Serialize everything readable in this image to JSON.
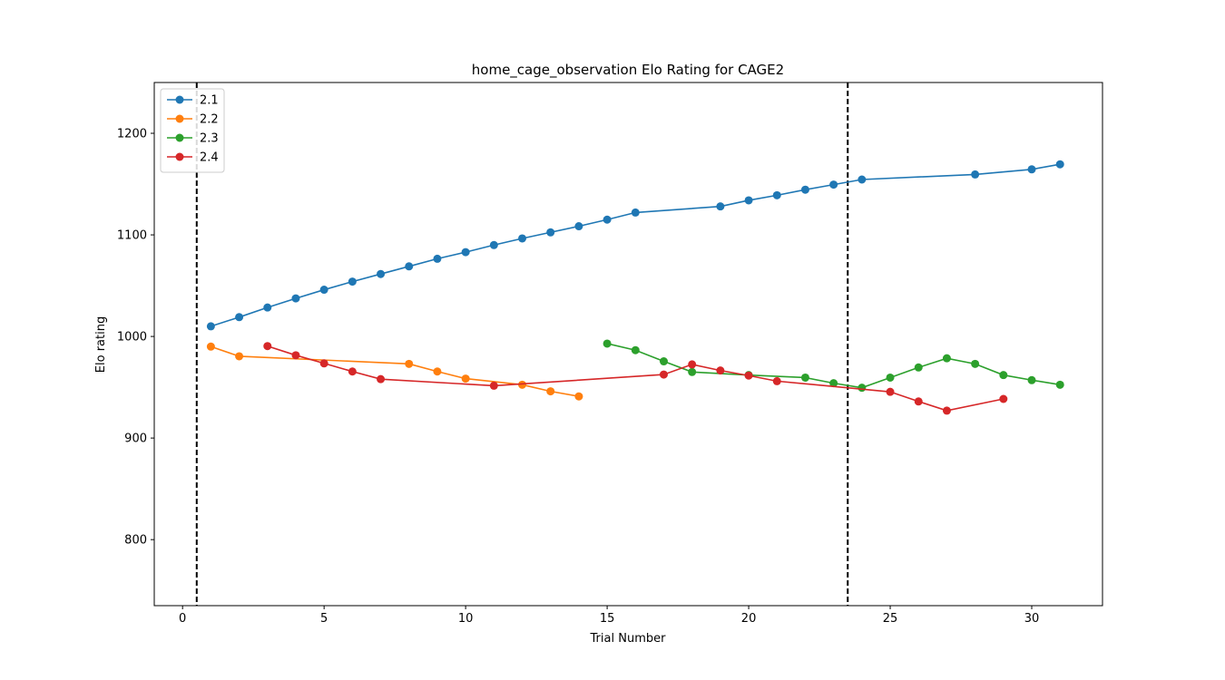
{
  "chart_data": {
    "type": "line",
    "title": "home_cage_observation Elo Rating for CAGE2",
    "xlabel": "Trial Number",
    "ylabel": "Elo rating",
    "xlim": [
      -1,
      32.5
    ],
    "ylim": [
      735,
      1250
    ],
    "xticks": [
      0,
      5,
      10,
      15,
      20,
      25,
      30
    ],
    "yticks": [
      800,
      900,
      1000,
      1100,
      1200
    ],
    "grid": false,
    "legend_position": "top-left",
    "vlines": [
      0.5,
      23.5
    ],
    "series": [
      {
        "name": "2.1",
        "color": "#1f77b4",
        "x": [
          1,
          2,
          3,
          4,
          5,
          6,
          7,
          8,
          9,
          10,
          11,
          12,
          13,
          14,
          15,
          16,
          19,
          20,
          21,
          22,
          23,
          24,
          28,
          30,
          31
        ],
        "y": [
          1010,
          1019,
          1028.5,
          1037.5,
          1046,
          1054,
          1061.5,
          1069,
          1076.5,
          1083,
          1090,
          1096.5,
          1102.5,
          1108.5,
          1115,
          1122,
          1128,
          1134,
          1139,
          1144.5,
          1149.5,
          1154.5,
          1159.5,
          1164.5,
          1169.5
        ]
      },
      {
        "name": "2.2",
        "color": "#ff7f0e",
        "x": [
          1,
          2,
          8,
          9,
          10,
          12,
          13,
          14
        ],
        "y": [
          990,
          980.5,
          973,
          965.5,
          958.5,
          952.5,
          946,
          941
        ]
      },
      {
        "name": "2.3",
        "color": "#2ca02c",
        "x": [
          15,
          16,
          17,
          18,
          20,
          22,
          23,
          24,
          25,
          26,
          27,
          28,
          29,
          30,
          31
        ],
        "y": [
          993,
          986.5,
          975.5,
          965,
          962,
          959.5,
          954,
          949.5,
          959.5,
          969.5,
          978.5,
          973,
          962,
          957,
          952.5
        ]
      },
      {
        "name": "2.4",
        "color": "#d62728",
        "x": [
          3,
          4,
          5,
          6,
          7,
          11,
          17,
          18,
          19,
          20,
          21,
          25,
          26,
          27,
          29
        ],
        "y": [
          990.5,
          981.5,
          973.5,
          965.5,
          958,
          951.5,
          962.5,
          972.5,
          966.5,
          961.5,
          956,
          945.5,
          936,
          927,
          938.5
        ]
      }
    ]
  }
}
